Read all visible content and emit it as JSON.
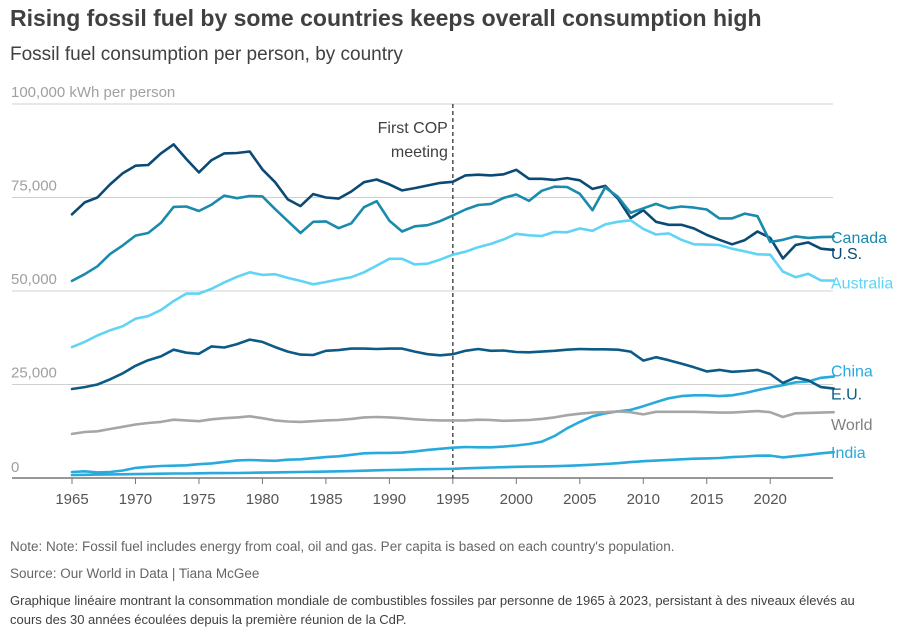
{
  "header": {
    "title": "Rising fossil fuel by some countries keeps overall consumption high",
    "subtitle": "Fossil fuel consumption per person, by country"
  },
  "chart_data": {
    "type": "line",
    "title": "Rising fossil fuel by some countries keeps overall consumption high",
    "subtitle": "Fossil fuel consumption per person, by country",
    "ylabel": "kWh per person",
    "ylim": [
      0,
      100000
    ],
    "xlim": [
      1965,
      2024
    ],
    "y_ticks": [
      0,
      25000,
      50000,
      75000,
      100000
    ],
    "y_tick_labels": [
      "0",
      "25,000",
      "50,000",
      "75,000",
      "100,000 kWh per person"
    ],
    "x_ticks": [
      1965,
      1970,
      1975,
      1980,
      1985,
      1990,
      1995,
      2000,
      2005,
      2010,
      2015,
      2020
    ],
    "x_tick_labels": [
      "1965",
      "1970",
      "1975",
      "1980",
      "1985",
      "1990",
      "1995",
      "2000",
      "2005",
      "2010",
      "2015",
      "2020"
    ],
    "grid": "horizontal",
    "legend": "direct labels at line ends (right)",
    "annotation": {
      "x": 1995,
      "text_line1": "First COP",
      "text_line2": "meeting"
    },
    "x_start": 1965,
    "x_end": 2024,
    "series": [
      {
        "name": "U.S.",
        "color": "#0b4a74",
        "values": [
          70500,
          73700,
          75000,
          78500,
          81500,
          83500,
          83700,
          86800,
          89200,
          85300,
          81700,
          85000,
          86800,
          86900,
          87300,
          82500,
          79100,
          74500,
          72700,
          75900,
          75000,
          74700,
          76600,
          79100,
          79800,
          78500,
          76900,
          77500,
          78200,
          78900,
          79200,
          80900,
          81100,
          80900,
          81200,
          82400,
          80000,
          80000,
          79700,
          80200,
          79600,
          77300,
          78100,
          74700,
          69500,
          71600,
          68500,
          67700,
          67700,
          66700,
          65000,
          63700,
          62500,
          63600,
          65900,
          64200,
          58700,
          62300,
          63000,
          61300,
          61000
        ]
      },
      {
        "name": "Canada",
        "color": "#1a8aad",
        "values": [
          52700,
          54500,
          56600,
          59900,
          62200,
          64800,
          65500,
          68200,
          72500,
          72600,
          71400,
          73100,
          75500,
          74800,
          75400,
          75300,
          71900,
          68700,
          65500,
          68500,
          68600,
          66800,
          68100,
          72400,
          74000,
          68800,
          65900,
          67300,
          67600,
          68700,
          70200,
          71800,
          73000,
          73300,
          74900,
          75800,
          74100,
          76800,
          77900,
          77800,
          76000,
          71600,
          77700,
          75200,
          70900,
          72100,
          73300,
          72100,
          72600,
          72300,
          71800,
          69400,
          69400,
          70700,
          70000,
          63100,
          63700,
          64600,
          64200,
          64400,
          64500
        ]
      },
      {
        "name": "Australia",
        "color": "#5fd4f5",
        "values": [
          35000,
          36400,
          38100,
          39500,
          40600,
          42600,
          43300,
          44900,
          47300,
          49300,
          49300,
          50600,
          52300,
          53800,
          55000,
          54300,
          54500,
          53500,
          52700,
          51800,
          52400,
          53100,
          53700,
          55000,
          56800,
          58600,
          58600,
          57100,
          57300,
          58400,
          59700,
          60500,
          61700,
          62600,
          63800,
          65300,
          64900,
          64700,
          65800,
          65700,
          66700,
          66100,
          67800,
          68500,
          68900,
          66600,
          65100,
          65400,
          63700,
          62500,
          62400,
          62300,
          61300,
          60600,
          59800,
          59700,
          55200,
          53700,
          54600,
          52800,
          52800
        ]
      },
      {
        "name": "China",
        "color": "#28aadc",
        "values": [
          1600,
          1800,
          1500,
          1600,
          2000,
          2700,
          3000,
          3200,
          3300,
          3400,
          3700,
          3900,
          4300,
          4700,
          4800,
          4700,
          4600,
          4900,
          5000,
          5300,
          5600,
          5800,
          6200,
          6600,
          6700,
          6700,
          6800,
          7100,
          7500,
          7800,
          8100,
          8300,
          8200,
          8200,
          8400,
          8700,
          9100,
          9700,
          11200,
          13300,
          15000,
          16500,
          17300,
          17800,
          18200,
          19200,
          20300,
          21300,
          21900,
          22100,
          22100,
          21900,
          22100,
          22700,
          23500,
          24200,
          24800,
          25600,
          25800,
          26800,
          27100
        ]
      },
      {
        "name": "E.U.",
        "color": "#0c5a86",
        "values": [
          23800,
          24300,
          25000,
          26400,
          28000,
          30000,
          31500,
          32500,
          34300,
          33500,
          33200,
          35200,
          34900,
          35800,
          37000,
          36400,
          35000,
          33800,
          33000,
          32900,
          34000,
          34200,
          34600,
          34600,
          34500,
          34600,
          34600,
          33800,
          33100,
          32800,
          33100,
          34000,
          34500,
          34000,
          34100,
          33700,
          33600,
          33800,
          34000,
          34300,
          34500,
          34400,
          34400,
          34300,
          33800,
          31400,
          32300,
          31500,
          30600,
          29600,
          28500,
          28900,
          28400,
          28600,
          28900,
          27800,
          25400,
          26900,
          26100,
          24300,
          23900
        ]
      },
      {
        "name": "World",
        "color": "#a6a6a6",
        "values": [
          11800,
          12300,
          12500,
          13100,
          13700,
          14300,
          14700,
          15000,
          15600,
          15400,
          15200,
          15700,
          16000,
          16200,
          16500,
          16000,
          15400,
          15100,
          15000,
          15200,
          15400,
          15500,
          15800,
          16200,
          16300,
          16200,
          16000,
          15700,
          15500,
          15400,
          15400,
          15400,
          15600,
          15500,
          15300,
          15400,
          15500,
          15800,
          16200,
          16800,
          17200,
          17500,
          17600,
          17800,
          17600,
          17000,
          17700,
          17700,
          17700,
          17700,
          17600,
          17500,
          17500,
          17700,
          17900,
          17600,
          16300,
          17300,
          17400,
          17500,
          17600
        ]
      },
      {
        "name": "India",
        "color": "#28aadc",
        "values": [
          800,
          850,
          900,
          950,
          1000,
          1050,
          1100,
          1150,
          1200,
          1200,
          1250,
          1300,
          1300,
          1350,
          1400,
          1450,
          1500,
          1550,
          1600,
          1650,
          1700,
          1800,
          1850,
          1950,
          2050,
          2150,
          2200,
          2300,
          2350,
          2400,
          2450,
          2600,
          2700,
          2800,
          2900,
          3000,
          3050,
          3100,
          3150,
          3250,
          3400,
          3550,
          3750,
          3950,
          4250,
          4500,
          4650,
          4850,
          5000,
          5150,
          5250,
          5350,
          5600,
          5750,
          5950,
          6000,
          5500,
          5850,
          6200,
          6600,
          6900
        ]
      }
    ]
  },
  "footer": {
    "note": "Note: Note: Fossil fuel includes energy from coal, oil and gas. Per capita is based on each country's population.",
    "source": "Source: Our World in Data | Tiana McGee",
    "description": "Graphique linéaire montrant la consommation mondiale de combustibles fossiles par personne de 1965 à 2023, persistant à des niveaux élevés au cours des 30 années écoulées depuis la première réunion de la CdP."
  }
}
